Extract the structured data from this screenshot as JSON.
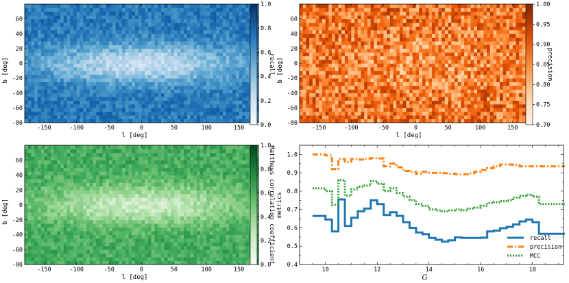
{
  "chart_data": [
    {
      "type": "heatmap",
      "panel": "top-left",
      "xlabel": "l [deg]",
      "ylabel": "b [deg]",
      "xlim": [
        -180,
        180
      ],
      "ylim": [
        -80,
        80
      ],
      "xticks": [
        -150,
        -100,
        -50,
        0,
        50,
        100,
        150
      ],
      "yticks": [
        -80,
        -60,
        -40,
        -20,
        0,
        20,
        40,
        60
      ],
      "colormap": "Blues",
      "colorbar": {
        "label": "recall",
        "range": [
          0.0,
          1.0
        ],
        "ticks": [
          "0.0",
          "0.2",
          "0.4",
          "0.6",
          "0.8",
          "1.0"
        ]
      }
    },
    {
      "type": "heatmap",
      "panel": "top-right",
      "xlabel": "l [deg]",
      "ylabel": "b [deg]",
      "xlim": [
        -180,
        180
      ],
      "ylim": [
        -80,
        80
      ],
      "xticks": [
        -150,
        -100,
        -50,
        0,
        50,
        100,
        150
      ],
      "yticks": [
        -80,
        -60,
        -40,
        -20,
        0,
        20,
        40,
        60
      ],
      "colormap": "Oranges",
      "colorbar": {
        "label": "precision",
        "range": [
          0.7,
          1.0
        ],
        "ticks": [
          "0.70",
          "0.75",
          "0.80",
          "0.85",
          "0.90",
          "0.95",
          "1.00"
        ]
      }
    },
    {
      "type": "heatmap",
      "panel": "bottom-left",
      "xlabel": "l [deg]",
      "ylabel": "b [deg]",
      "xlim": [
        -180,
        180
      ],
      "ylim": [
        -80,
        80
      ],
      "xticks": [
        -150,
        -100,
        -50,
        0,
        50,
        100,
        150
      ],
      "yticks": [
        -80,
        -60,
        -40,
        -20,
        0,
        20,
        40,
        60
      ],
      "colormap": "Greens",
      "colorbar": {
        "label": "Matthews correlation coefficient",
        "range": [
          0.0,
          1.0
        ],
        "ticks": [
          "0.0",
          "0.2",
          "0.4",
          "0.6",
          "0.8",
          "1.0"
        ]
      }
    },
    {
      "type": "line",
      "panel": "bottom-right",
      "step": true,
      "xlabel": "G",
      "ylabel": "metrics",
      "xlim": [
        9,
        19.2
      ],
      "ylim": [
        0.4,
        1.05
      ],
      "xticks": [
        10,
        12,
        14,
        16,
        18
      ],
      "yticks": [
        "0.4",
        "0.5",
        "0.6",
        "0.7",
        "0.8",
        "0.9",
        "1.0"
      ],
      "legend_position": "lower-right",
      "x": [
        9.5,
        10.0,
        10.25,
        10.5,
        10.75,
        11.0,
        11.25,
        11.5,
        11.75,
        12.0,
        12.25,
        12.5,
        12.75,
        13.0,
        13.25,
        13.5,
        13.75,
        14.0,
        14.25,
        14.5,
        14.75,
        15.0,
        15.25,
        15.5,
        15.75,
        16.0,
        16.25,
        16.5,
        16.75,
        17.0,
        17.25,
        17.5,
        17.75,
        18.0,
        18.25,
        18.5,
        18.75
      ],
      "series": [
        {
          "name": "recall",
          "color": "#1f77b4",
          "dash": "solid",
          "values": [
            0.665,
            0.645,
            0.58,
            0.755,
            0.61,
            0.655,
            0.69,
            0.705,
            0.75,
            0.73,
            0.67,
            0.685,
            0.665,
            0.63,
            0.6,
            0.575,
            0.565,
            0.545,
            0.535,
            0.525,
            0.532,
            0.548,
            0.545,
            0.545,
            0.545,
            0.546,
            0.58,
            0.585,
            0.598,
            0.605,
            0.618,
            0.635,
            0.645,
            0.63,
            0.567,
            0.567,
            0.567
          ]
        },
        {
          "name": "precision",
          "color": "#ff7f0e",
          "dash": "dashdot",
          "values": [
            1.0,
            0.995,
            0.92,
            0.975,
            0.96,
            0.975,
            0.972,
            0.977,
            0.98,
            0.978,
            0.935,
            0.95,
            0.93,
            0.91,
            0.905,
            0.895,
            0.905,
            0.9,
            0.9,
            0.898,
            0.895,
            0.892,
            0.892,
            0.898,
            0.905,
            0.915,
            0.925,
            0.935,
            0.945,
            0.945,
            0.943,
            0.935,
            0.935,
            0.935,
            0.935,
            0.935,
            0.935
          ]
        },
        {
          "name": "MCC",
          "color": "#2ca02c",
          "dash": "dotted",
          "values": [
            0.815,
            0.8,
            0.725,
            0.86,
            0.775,
            0.81,
            0.825,
            0.83,
            0.855,
            0.84,
            0.8,
            0.815,
            0.79,
            0.77,
            0.75,
            0.73,
            0.72,
            0.7,
            0.695,
            0.69,
            0.695,
            0.7,
            0.695,
            0.705,
            0.71,
            0.72,
            0.735,
            0.74,
            0.745,
            0.75,
            0.765,
            0.775,
            0.78,
            0.77,
            0.73,
            0.73,
            0.73
          ]
        }
      ]
    }
  ]
}
